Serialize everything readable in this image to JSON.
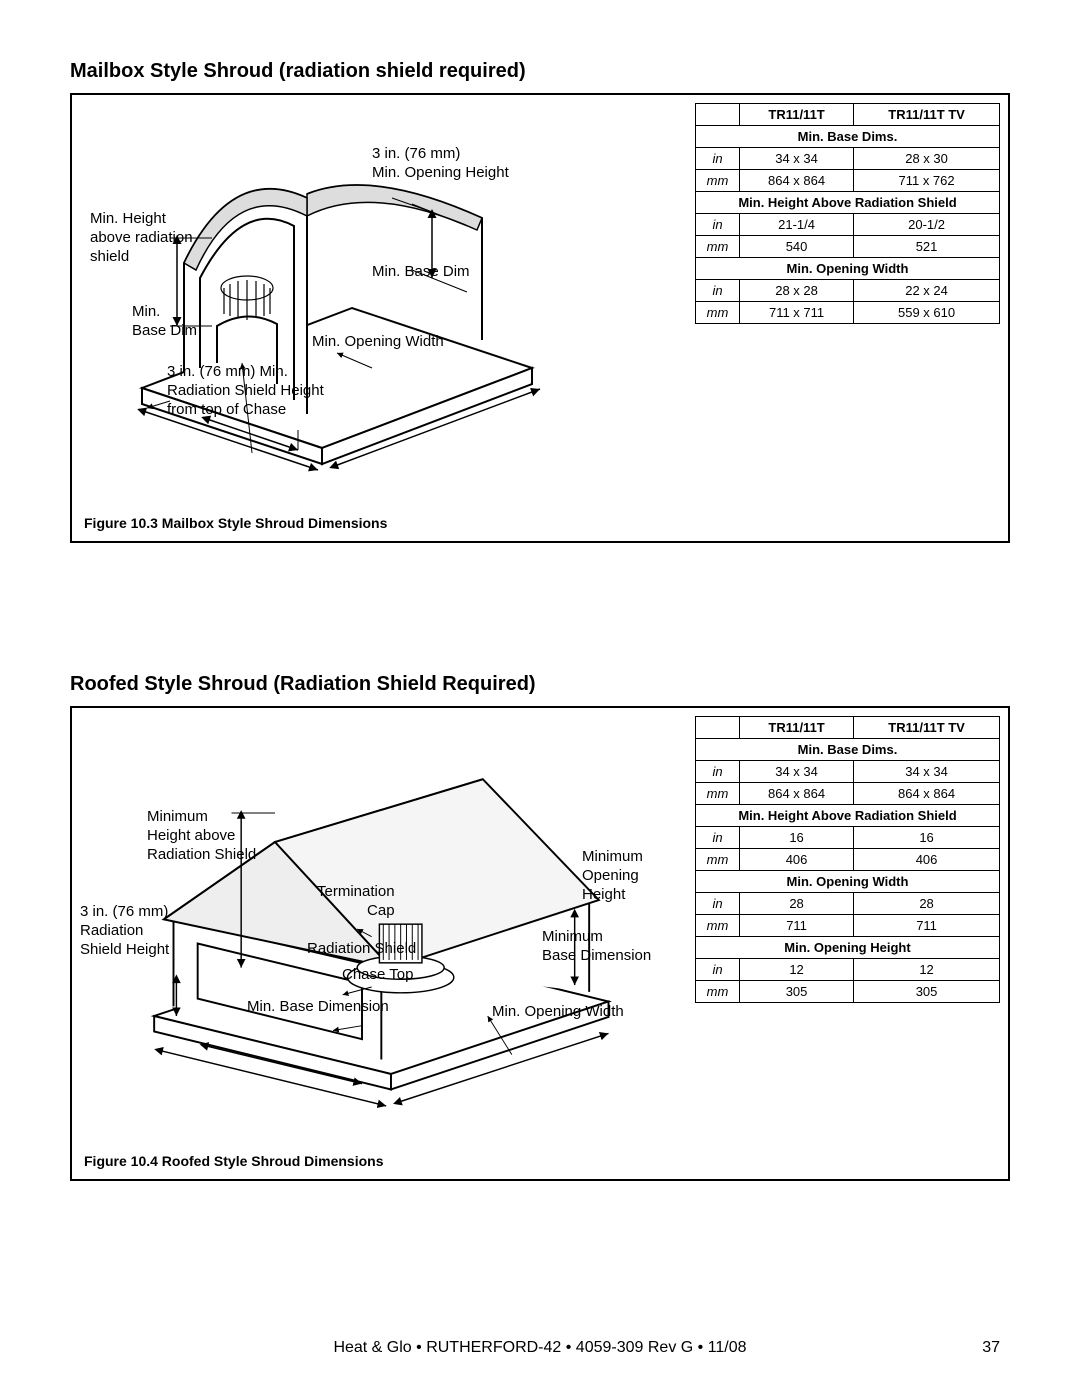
{
  "sec1": {
    "title": "Mailbox Style Shroud (radiation shield required)",
    "caption": "Figure 10.3  Mailbox Style Shroud Dimensions",
    "labels": {
      "opening_height": "3 in. (76 mm)\nMin. Opening Height",
      "min_height_above": "Min. Height\nabove radiation\nshield",
      "min_base_dim_r": "Min. Base Dim",
      "min_base_dim_l": "Min.\nBase Dim",
      "min_opening_width": "Min. Opening Width",
      "rad_shield_height": "3 in. (76 mm) Min.\nRadiation Shield Height\nfrom top of Chase"
    },
    "table": {
      "cols": [
        "",
        "TR11/11T",
        "TR11/11T TV"
      ],
      "sections": [
        {
          "header": "Min. Base Dims.",
          "rows": [
            {
              "unit": "in",
              "c1": "34 x 34",
              "c2": "28 x 30"
            },
            {
              "unit": "mm",
              "c1": "864 x 864",
              "c2": "711 x 762"
            }
          ]
        },
        {
          "header": "Min. Height Above Radiation Shield",
          "rows": [
            {
              "unit": "in",
              "c1": "21-1/4",
              "c2": "20-1/2"
            },
            {
              "unit": "mm",
              "c1": "540",
              "c2": "521"
            }
          ]
        },
        {
          "header": "Min. Opening Width",
          "rows": [
            {
              "unit": "in",
              "c1": "28 x 28",
              "c2": "22 x 24"
            },
            {
              "unit": "mm",
              "c1": "711 x 711",
              "c2": "559 x 610"
            }
          ]
        }
      ]
    }
  },
  "sec2": {
    "title": "Roofed Style Shroud (Radiation Shield Required)",
    "caption": "Figure 10.4  Roofed Style Shroud Dimensions",
    "labels": {
      "min_height_above": "Minimum\nHeight above\nRadiation Shield",
      "termination_cap": "Termination\nCap",
      "rad_shield": "Radiation Shield",
      "chase_top": "Chase Top",
      "rad_shield_height": "3 in. (76 mm)\nRadiation\nShield Height",
      "min_base_dim_l": "Min. Base Dimension",
      "min_opening_width": "Min. Opening Width",
      "min_opening_height": "Minimum\nOpening\nHeight",
      "min_base_dim_r": "Minimum\nBase Dimension"
    },
    "table": {
      "cols": [
        "",
        "TR11/11T",
        "TR11/11T TV"
      ],
      "sections": [
        {
          "header": "Min. Base Dims.",
          "rows": [
            {
              "unit": "in",
              "c1": "34 x 34",
              "c2": "34 x 34"
            },
            {
              "unit": "mm",
              "c1": "864 x 864",
              "c2": "864 x 864"
            }
          ]
        },
        {
          "header": "Min. Height Above Radiation Shield",
          "rows": [
            {
              "unit": "in",
              "c1": "16",
              "c2": "16"
            },
            {
              "unit": "mm",
              "c1": "406",
              "c2": "406"
            }
          ]
        },
        {
          "header": "Min. Opening Width",
          "rows": [
            {
              "unit": "in",
              "c1": "28",
              "c2": "28"
            },
            {
              "unit": "mm",
              "c1": "711",
              "c2": "711"
            }
          ]
        },
        {
          "header": "Min. Opening Height",
          "rows": [
            {
              "unit": "in",
              "c1": "12",
              "c2": "12"
            },
            {
              "unit": "mm",
              "c1": "305",
              "c2": "305"
            }
          ]
        }
      ]
    }
  },
  "footer": "Heat & Glo • RUTHERFORD-42 • 4059-309 Rev G • 11/08",
  "page": "37"
}
